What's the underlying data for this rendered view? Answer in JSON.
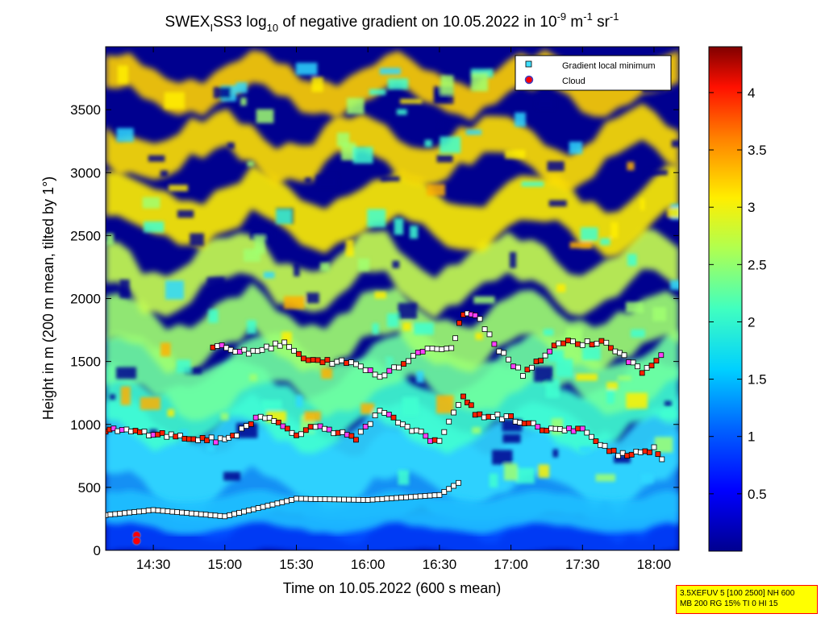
{
  "chart_data": {
    "type": "heatmap",
    "title_parts": {
      "prefix": "SWEX",
      "sub1": "I",
      "mid": "SS3 log",
      "sub2": "10",
      "text": " of negative gradient on 10.05.2022 in 10",
      "sup1": "-9",
      "unit1": " m",
      "sup2": "-1",
      "unit2": " sr",
      "sup3": "-1"
    },
    "xlabel": "Time on 10.05.2022 (600 s mean)",
    "ylabel": "Height in m (200 m mean, tilted by 1°)",
    "x_tick_labels": [
      "14:30",
      "15:00",
      "15:30",
      "16:00",
      "16:30",
      "17:00",
      "17:30",
      "18:00"
    ],
    "y_tick_labels": [
      "0",
      "500",
      "1000",
      "1500",
      "2000",
      "2500",
      "3000",
      "3500"
    ],
    "ylim": [
      0,
      4000
    ],
    "colorbar": {
      "tick_labels": [
        "0.5",
        "1",
        "1.5",
        "2",
        "2.5",
        "3",
        "3.5",
        "4"
      ],
      "range": [
        0,
        4.4
      ],
      "colormap": "jet"
    },
    "legend": {
      "position": "top-right",
      "entries": [
        "Gradient local minimum",
        "Cloud"
      ]
    },
    "series": [
      {
        "name": "Gradient local minimum",
        "description_layers": [
          {
            "time": [
              "14:10",
              "14:30",
              "15:00",
              "15:30",
              "16:00",
              "16:30",
              "16:40"
            ],
            "height": [
              280,
              320,
              270,
              410,
              400,
              440,
              560
            ]
          },
          {
            "time": [
              "14:10",
              "14:15",
              "14:30",
              "14:45",
              "15:00",
              "15:05",
              "15:15",
              "15:30",
              "15:40",
              "15:55",
              "16:05",
              "16:30",
              "16:40",
              "16:45",
              "17:00",
              "17:15",
              "17:30",
              "17:45",
              "18:00",
              "18:05"
            ],
            "height": [
              960,
              950,
              930,
              890,
              870,
              930,
              1080,
              930,
              990,
              880,
              1100,
              850,
              1240,
              1080,
              1050,
              960,
              950,
              760,
              800,
              690
            ]
          },
          {
            "time": [
              "14:55",
              "15:10",
              "15:25",
              "15:35",
              "15:45",
              "15:55",
              "16:05",
              "16:25",
              "16:35",
              "16:40",
              "16:45",
              "16:55",
              "17:05",
              "17:20",
              "17:40",
              "17:55",
              "18:05"
            ],
            "height": [
              1620,
              1580,
              1640,
              1500,
              1500,
              1480,
              1380,
              1610,
              1590,
              1890,
              1880,
              1600,
              1400,
              1650,
              1650,
              1420,
              1560
            ]
          }
        ]
      }
    ],
    "clouds": [
      {
        "time": "14:23",
        "height": 120
      },
      {
        "time": "14:23",
        "height": 75
      }
    ]
  },
  "infobox": {
    "line1": "3.5XEFUV 5 [100 2500] NH 600",
    "line2": "MB 200 RG 15% TI 0 HI 15"
  }
}
